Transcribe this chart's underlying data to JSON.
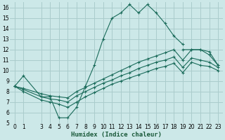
{
  "xlabel": "Humidex (Indice chaleur)",
  "bg_color": "#cce8e8",
  "grid_color": "#aacccc",
  "line_color": "#1a6b5a",
  "xlim": [
    -0.5,
    23.5
  ],
  "ylim": [
    5,
    16.5
  ],
  "xticks": [
    0,
    1,
    3,
    4,
    5,
    6,
    7,
    8,
    9,
    10,
    11,
    12,
    13,
    14,
    15,
    16,
    17,
    18,
    19,
    20,
    21,
    22,
    23
  ],
  "yticks": [
    5,
    6,
    7,
    8,
    9,
    10,
    11,
    12,
    13,
    14,
    15,
    16
  ],
  "series": [
    {
      "x": [
        0,
        1,
        3,
        4,
        5,
        6,
        7,
        8,
        9,
        10,
        11,
        12,
        13,
        14,
        15,
        16,
        17,
        18,
        19,
        20,
        21,
        22,
        23
      ],
      "y": [
        8.5,
        9.5,
        7.5,
        7.5,
        5.5,
        5.5,
        6.5,
        8.5,
        10.5,
        13.0,
        15.0,
        15.5,
        16.3,
        15.5,
        16.3,
        15.5,
        14.5,
        13.3,
        12.5,
        null,
        null,
        null,
        null
      ]
    },
    {
      "x": [
        19,
        20,
        21,
        22,
        23
      ],
      "y": [
        12.0,
        12.0,
        12.0,
        11.5,
        10.5
      ]
    },
    {
      "x": [
        0,
        1,
        3,
        4,
        5,
        6,
        7,
        8,
        9,
        10,
        11,
        12,
        13,
        14,
        15,
        16,
        17,
        18,
        19,
        20,
        21,
        22,
        23
      ],
      "y": [
        8.5,
        8.3,
        7.8,
        7.6,
        7.5,
        7.4,
        8.0,
        8.4,
        8.8,
        9.2,
        9.6,
        10.0,
        10.4,
        10.8,
        11.1,
        11.4,
        11.7,
        12.0,
        11.0,
        12.0,
        12.0,
        11.8,
        10.5
      ]
    },
    {
      "x": [
        0,
        1,
        3,
        4,
        5,
        6,
        7,
        8,
        9,
        10,
        11,
        12,
        13,
        14,
        15,
        16,
        17,
        18,
        19,
        20,
        21,
        22,
        23
      ],
      "y": [
        8.5,
        8.2,
        7.5,
        7.3,
        7.2,
        7.0,
        7.6,
        8.0,
        8.4,
        8.8,
        9.1,
        9.5,
        9.8,
        10.2,
        10.5,
        10.8,
        11.0,
        11.3,
        10.3,
        11.2,
        11.0,
        10.8,
        10.3
      ]
    },
    {
      "x": [
        0,
        1,
        3,
        4,
        5,
        6,
        7,
        8,
        9,
        10,
        11,
        12,
        13,
        14,
        15,
        16,
        17,
        18,
        19,
        20,
        21,
        22,
        23
      ],
      "y": [
        8.5,
        8.0,
        7.2,
        7.0,
        6.8,
        6.5,
        7.0,
        7.5,
        7.9,
        8.3,
        8.7,
        9.0,
        9.3,
        9.6,
        9.9,
        10.2,
        10.4,
        10.7,
        9.8,
        10.8,
        10.5,
        10.4,
        10.0
      ]
    }
  ]
}
